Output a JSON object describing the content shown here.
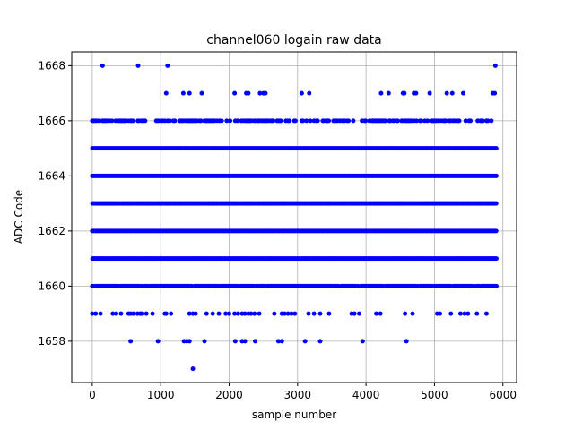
{
  "chart_data": {
    "type": "scatter",
    "title": "channel060 logain raw data",
    "xlabel": "sample number",
    "ylabel": "ADC Code",
    "xlim": [
      -300,
      6200
    ],
    "ylim": [
      1656.5,
      1668.5
    ],
    "xticks": [
      0,
      1000,
      2000,
      3000,
      4000,
      5000,
      6000
    ],
    "yticks": [
      1658,
      1660,
      1662,
      1664,
      1666,
      1668
    ],
    "grid": true,
    "marker_color": "#0000ff",
    "series": [
      {
        "dense_rows": [
          {
            "y": 1666,
            "x_min": 0,
            "x_max": 5920,
            "density": 0.55
          },
          {
            "y": 1665,
            "x_min": 0,
            "x_max": 5920,
            "density": 1.0
          },
          {
            "y": 1664,
            "x_min": 0,
            "x_max": 5920,
            "density": 1.0
          },
          {
            "y": 1663,
            "x_min": 0,
            "x_max": 5920,
            "density": 1.0
          },
          {
            "y": 1662,
            "x_min": 0,
            "x_max": 5920,
            "density": 1.0
          },
          {
            "y": 1661,
            "x_min": 0,
            "x_max": 5920,
            "density": 1.0
          },
          {
            "y": 1660,
            "x_min": 0,
            "x_max": 5920,
            "density": 0.9
          }
        ],
        "sparse_points": [
          {
            "y": 1668,
            "x": [
              150,
              670,
              1100,
              5890
            ]
          },
          {
            "y": 1667,
            "x": [
              1080,
              1330,
              1420,
              1600,
              2080,
              2250,
              2280,
              2450,
              2500,
              2530,
              3060,
              3170,
              4220,
              4330,
              4540,
              4560,
              4700,
              4730,
              4930,
              5180,
              5260,
              5420,
              5850,
              5880
            ]
          },
          {
            "y": 1659,
            "x": [
              0,
              50,
              120,
              300,
              350,
              420,
              530,
              560,
              600,
              660,
              700,
              720,
              790,
              880,
              1060,
              1080,
              1150,
              1420,
              1470,
              1510,
              1670,
              1760,
              1850,
              1950,
              2000,
              2080,
              2130,
              2190,
              2230,
              2280,
              2320,
              2370,
              2440,
              2660,
              2770,
              2810,
              2860,
              2910,
              2960,
              3160,
              3240,
              3330,
              3460,
              3790,
              3830,
              3900,
              4150,
              4210,
              4570,
              4680,
              5040,
              5080,
              5240,
              5380,
              5440,
              5490,
              5620,
              5760
            ]
          },
          {
            "y": 1658,
            "x": [
              560,
              960,
              1340,
              1380,
              1420,
              1640,
              2090,
              2190,
              2230,
              2380,
              2720,
              2770,
              3110,
              3330,
              3950,
              4590
            ]
          },
          {
            "y": 1657,
            "x": [
              1470
            ]
          }
        ]
      }
    ]
  }
}
